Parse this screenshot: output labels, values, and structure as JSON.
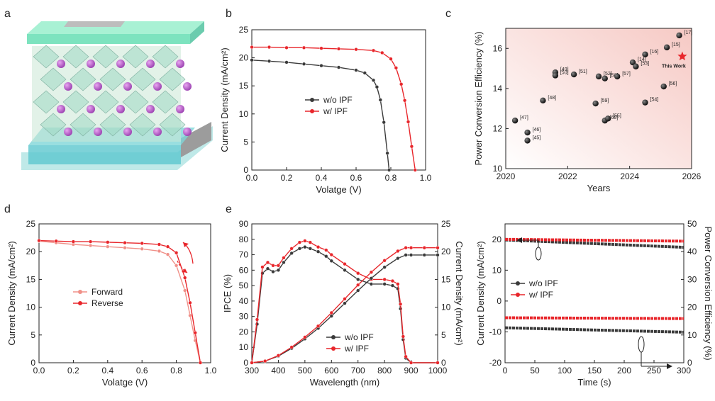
{
  "panel_letters": [
    "a",
    "b",
    "c",
    "d",
    "e"
  ],
  "colors": {
    "red": "#e8262b",
    "dark": "#3a3a3a",
    "bg_c": "#f9d9d6"
  },
  "chart_data": [
    {
      "type": "line",
      "id": "b",
      "xlabel": "Volatge (V)",
      "ylabel": "Current Density (mA/cm²)",
      "xlim": [
        0,
        1.0
      ],
      "ylim": [
        0,
        25
      ],
      "xticks": [
        "0.0",
        "0.2",
        "0.4",
        "0.6",
        "0.8",
        "1.0"
      ],
      "yticks": [
        "0",
        "5",
        "10",
        "15",
        "20",
        "25"
      ],
      "legend_placement": "center",
      "series": [
        {
          "name": "w/o IPF",
          "color": "#3a3a3a",
          "x": [
            0,
            0.1,
            0.2,
            0.3,
            0.4,
            0.5,
            0.6,
            0.65,
            0.7,
            0.72,
            0.74,
            0.76,
            0.78,
            0.79
          ],
          "y": [
            19.6,
            19.4,
            19.2,
            18.9,
            18.6,
            18.3,
            17.8,
            17.3,
            16.0,
            14.8,
            12.5,
            8.5,
            3.0,
            0
          ]
        },
        {
          "name": "w/ IPF",
          "color": "#e8262b",
          "x": [
            0,
            0.1,
            0.2,
            0.3,
            0.4,
            0.5,
            0.6,
            0.7,
            0.75,
            0.8,
            0.83,
            0.86,
            0.88,
            0.9,
            0.92,
            0.94
          ],
          "y": [
            21.9,
            21.9,
            21.8,
            21.8,
            21.7,
            21.6,
            21.5,
            21.3,
            20.9,
            19.8,
            18.2,
            15.3,
            12.4,
            8.6,
            4.2,
            0
          ]
        }
      ]
    },
    {
      "type": "scatter",
      "id": "c",
      "xlabel": "Years",
      "ylabel": "Power Conversion Efficiency (%)",
      "xlim": [
        2020,
        2026
      ],
      "ylim": [
        10,
        17
      ],
      "xticks": [
        "2020",
        "2022",
        "2024",
        "2026"
      ],
      "yticks": [
        "10",
        "12",
        "14",
        "16"
      ],
      "points": [
        {
          "x": 2020.3,
          "y": 12.4,
          "label": "[47]"
        },
        {
          "x": 2020.7,
          "y": 11.8,
          "label": "[46]"
        },
        {
          "x": 2020.7,
          "y": 11.4,
          "label": "[45]"
        },
        {
          "x": 2021.2,
          "y": 13.4,
          "label": "[48]"
        },
        {
          "x": 2021.6,
          "y": 14.8,
          "label": "[49]"
        },
        {
          "x": 2021.6,
          "y": 14.65,
          "label": "[50]"
        },
        {
          "x": 2022.2,
          "y": 14.7,
          "label": "[51]"
        },
        {
          "x": 2023.0,
          "y": 14.6,
          "label": "[52]"
        },
        {
          "x": 2023.2,
          "y": 14.5,
          "label": "[58]"
        },
        {
          "x": 2022.9,
          "y": 13.25,
          "label": "[59]"
        },
        {
          "x": 2023.2,
          "y": 12.4,
          "label": "[60]"
        },
        {
          "x": 2023.3,
          "y": 12.5,
          "label": "[55]"
        },
        {
          "x": 2023.6,
          "y": 14.6,
          "label": "[57]"
        },
        {
          "x": 2024.1,
          "y": 15.3,
          "label": "[14]"
        },
        {
          "x": 2024.2,
          "y": 15.1,
          "label": "[53]"
        },
        {
          "x": 2024.5,
          "y": 15.7,
          "label": "[16]"
        },
        {
          "x": 2024.5,
          "y": 13.3,
          "label": "[54]"
        },
        {
          "x": 2025.1,
          "y": 14.1,
          "label": "[56]"
        },
        {
          "x": 2025.2,
          "y": 16.05,
          "label": "[15]"
        },
        {
          "x": 2025.6,
          "y": 16.65,
          "label": "[17]"
        }
      ],
      "highlight": {
        "x": 2025.7,
        "y": 15.6,
        "label": "This Work"
      }
    },
    {
      "type": "line",
      "id": "d",
      "xlabel": "Volatge (V)",
      "ylabel": "Current Density (mA/cm²)",
      "xlim": [
        0,
        1.0
      ],
      "ylim": [
        0,
        25
      ],
      "xticks": [
        "0.0",
        "0.2",
        "0.4",
        "0.6",
        "0.8",
        "1.0"
      ],
      "yticks": [
        "0",
        "5",
        "10",
        "15",
        "20",
        "25"
      ],
      "legend_placement": "center-left",
      "series": [
        {
          "name": "Forward",
          "color": "#f09088",
          "x": [
            0,
            0.1,
            0.2,
            0.3,
            0.4,
            0.5,
            0.6,
            0.7,
            0.75,
            0.8,
            0.85,
            0.88,
            0.91,
            0.94
          ],
          "y": [
            21.9,
            21.6,
            21.3,
            21.1,
            20.9,
            20.7,
            20.5,
            20.1,
            19.5,
            17.5,
            13.0,
            8.5,
            4.0,
            0
          ]
        },
        {
          "name": "Reverse",
          "color": "#e8262b",
          "x": [
            0,
            0.1,
            0.2,
            0.3,
            0.4,
            0.5,
            0.6,
            0.7,
            0.75,
            0.8,
            0.85,
            0.88,
            0.91,
            0.94
          ],
          "y": [
            22.0,
            21.9,
            21.8,
            21.8,
            21.7,
            21.6,
            21.5,
            21.3,
            20.9,
            19.8,
            15.3,
            10.8,
            5.4,
            0
          ]
        }
      ]
    },
    {
      "type": "line",
      "id": "e",
      "xlabel": "Wavelength (nm)",
      "ylabel": "IPCE (%)",
      "y2label": "Current Density (mA/cm²)",
      "xlim": [
        300,
        1000
      ],
      "ylim": [
        0,
        90
      ],
      "y2lim": [
        0,
        25
      ],
      "xticks": [
        "300",
        "400",
        "500",
        "600",
        "700",
        "800",
        "900",
        "1000"
      ],
      "yticks": [
        "0",
        "10",
        "20",
        "30",
        "40",
        "50",
        "60",
        "70",
        "80",
        "90"
      ],
      "y2ticks": [
        "0",
        "5",
        "10",
        "15",
        "20",
        "25"
      ],
      "legend_placement": "bottom-center",
      "series": [
        {
          "name": "w/o IPF",
          "color": "#3a3a3a",
          "axis": "left",
          "x": [
            300,
            320,
            340,
            360,
            380,
            400,
            420,
            450,
            480,
            500,
            520,
            550,
            580,
            600,
            650,
            700,
            750,
            800,
            830,
            850,
            860,
            870,
            880,
            900,
            1000
          ],
          "y": [
            0,
            25,
            58,
            61,
            59,
            60,
            65,
            71,
            74,
            75,
            74,
            72,
            69,
            66,
            60,
            54,
            51,
            51,
            50,
            48,
            35,
            15,
            3,
            0,
            0
          ]
        },
        {
          "name": "w/ IPF",
          "color": "#e8262b",
          "axis": "left",
          "x": [
            300,
            320,
            340,
            360,
            380,
            400,
            420,
            450,
            480,
            500,
            520,
            550,
            580,
            600,
            650,
            700,
            750,
            800,
            830,
            850,
            860,
            870,
            880,
            900,
            1000
          ],
          "y": [
            0,
            28,
            62,
            65,
            63,
            63,
            68,
            74,
            78,
            79,
            78,
            75,
            73,
            70,
            64,
            58,
            54,
            54,
            53,
            51,
            38,
            17,
            4,
            0,
            0
          ]
        },
        {
          "name": "",
          "color": "#3a3a3a",
          "axis": "right",
          "x": [
            300,
            350,
            400,
            450,
            500,
            550,
            600,
            650,
            700,
            750,
            800,
            850,
            880,
            900,
            950,
            1000
          ],
          "y": [
            0,
            0.3,
            1.2,
            2.6,
            4.3,
            6.2,
            8.4,
            10.7,
            13.0,
            15.2,
            17.2,
            18.8,
            19.4,
            19.4,
            19.4,
            19.4
          ]
        },
        {
          "name": "",
          "color": "#e8262b",
          "axis": "right",
          "x": [
            300,
            350,
            400,
            450,
            500,
            550,
            600,
            650,
            700,
            750,
            800,
            850,
            880,
            900,
            950,
            1000
          ],
          "y": [
            0,
            0.3,
            1.3,
            2.8,
            4.6,
            6.6,
            9.0,
            11.5,
            14.0,
            16.3,
            18.4,
            20.1,
            20.7,
            20.7,
            20.7,
            20.7
          ]
        }
      ]
    },
    {
      "type": "scatter",
      "id": "f",
      "xlabel": "Time (s)",
      "ylabel": "Current Density (mA/cm²)",
      "y2label": "Power Conversion Efficiency (%)",
      "xlim": [
        0,
        300
      ],
      "ylim": [
        -20,
        25
      ],
      "y2lim": [
        0,
        50
      ],
      "xticks": [
        "0",
        "50",
        "100",
        "150",
        "200",
        "250",
        "300"
      ],
      "yticks": [
        "-20",
        "-10",
        "0",
        "10",
        "20"
      ],
      "y2ticks": [
        "0",
        "10",
        "20",
        "30",
        "40",
        "50"
      ],
      "legend_placement": "center-left",
      "series": [
        {
          "name": "w/o IPF",
          "color": "#3a3a3a",
          "axis": "left",
          "x": [
            0,
            300
          ],
          "y": [
            19.8,
            17.4
          ]
        },
        {
          "name": "w/ IPF",
          "color": "#e8262b",
          "axis": "left",
          "x": [
            0,
            300
          ],
          "y": [
            20.0,
            19.4
          ]
        },
        {
          "name": "",
          "color": "#e8262b",
          "axis": "right",
          "x": [
            0,
            300
          ],
          "y": [
            16.2,
            15.9
          ]
        },
        {
          "name": "",
          "color": "#3a3a3a",
          "axis": "right",
          "x": [
            0,
            300
          ],
          "y": [
            12.6,
            11.0
          ]
        }
      ]
    }
  ]
}
